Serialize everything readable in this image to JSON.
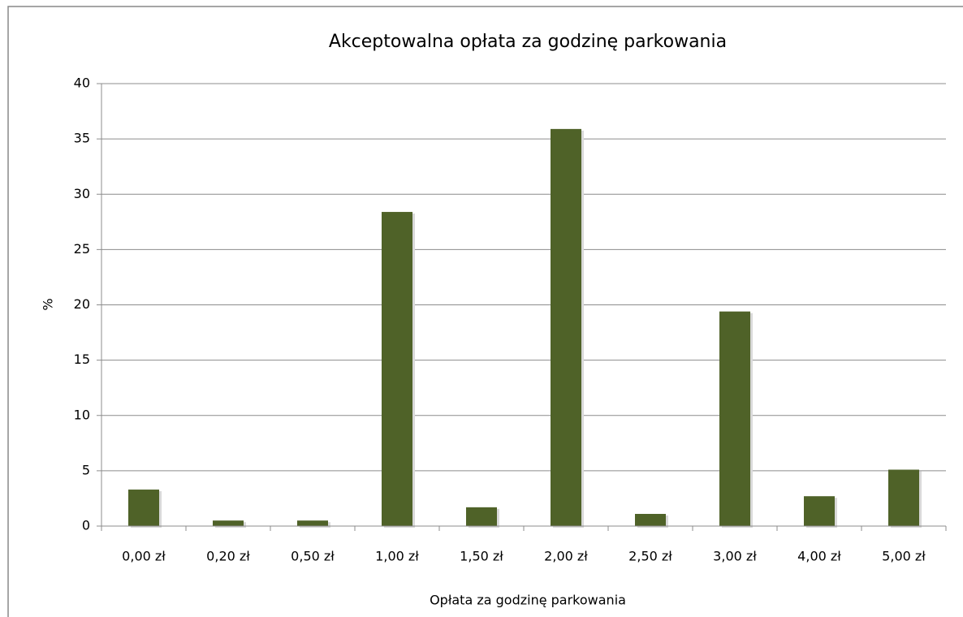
{
  "chart_data": {
    "type": "bar",
    "title": "Akceptowalna opłata za godzinę parkowania",
    "x_label": "Opłata za godzinę parkowania",
    "y_label": "%",
    "categories": [
      "0,00 zł",
      "0,20 zł",
      "0,50 zł",
      "1,00 zł",
      "1,50 zł",
      "2,00 zł",
      "2,50 zł",
      "3,00 zł",
      "4,00 zł",
      "5,00 zł"
    ],
    "values": [
      3.3,
      0.5,
      0.5,
      28.4,
      1.7,
      35.9,
      1.1,
      19.4,
      2.7,
      5.1
    ],
    "color": "#4f6228",
    "ylim": [
      0,
      40
    ],
    "yticks": [
      0,
      5,
      10,
      15,
      20,
      25,
      30,
      35,
      40
    ],
    "grid": true
  }
}
